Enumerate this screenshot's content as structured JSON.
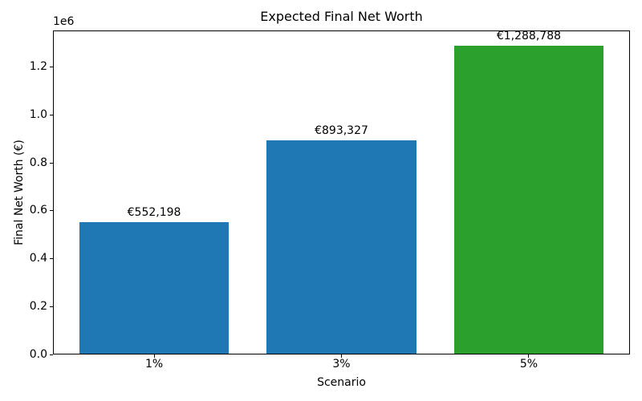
{
  "chart_data": {
    "type": "bar",
    "title": "Expected Final Net Worth",
    "xlabel": "Scenario",
    "ylabel": "Final Net Worth (€)",
    "y_offset_label": "1e6",
    "categories": [
      "1%",
      "3%",
      "5%"
    ],
    "values": [
      552198,
      893327,
      1288788
    ],
    "value_labels": [
      "€552,198",
      "€893,327",
      "€1,288,788"
    ],
    "bar_colors": [
      "#1f77b4",
      "#1f77b4",
      "#2ca02c"
    ],
    "ylim": [
      0,
      1353227
    ],
    "yticks": [
      0,
      200000,
      400000,
      600000,
      800000,
      1000000,
      1200000
    ],
    "ytick_labels": [
      "0.0",
      "0.2",
      "0.4",
      "0.6",
      "0.8",
      "1.0",
      "1.2"
    ],
    "bar_width_frac": 0.8,
    "grid": false,
    "legend": null,
    "background": "#ffffff"
  }
}
